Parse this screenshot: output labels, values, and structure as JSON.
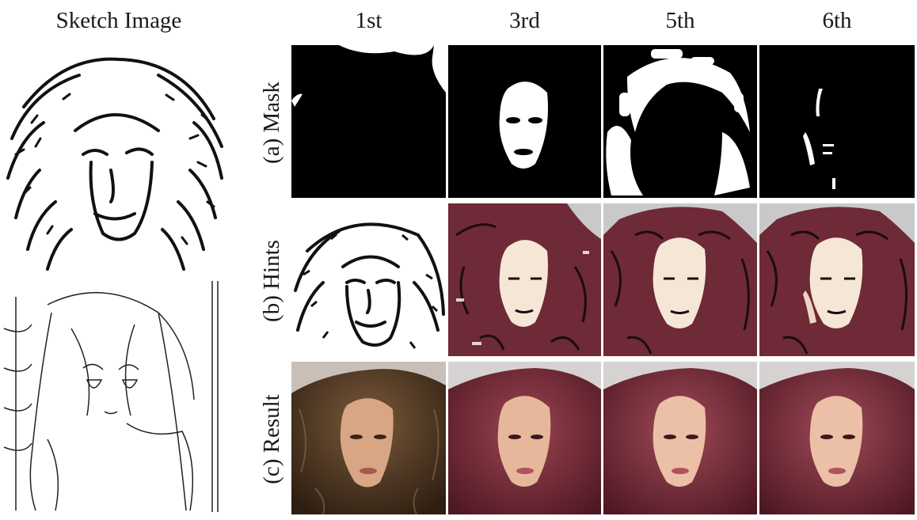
{
  "figure": {
    "sketch_heading": "Sketch Image",
    "column_headings": [
      "1st",
      "3rd",
      "5th",
      "6th"
    ],
    "row_labels": [
      "(a) Mask",
      "(b) Hints",
      "(c) Result"
    ]
  },
  "colors": {
    "mask_background": "#000000",
    "mask_foreground": "#ffffff",
    "hint_hair": "#6e2a36",
    "hint_skin": "#f5e6d6",
    "hint_background": "#c9c9c9",
    "result_hair_first": "#4a3220",
    "result_hair_later": "#7a2d3a",
    "result_skin": "#e7b79c"
  }
}
